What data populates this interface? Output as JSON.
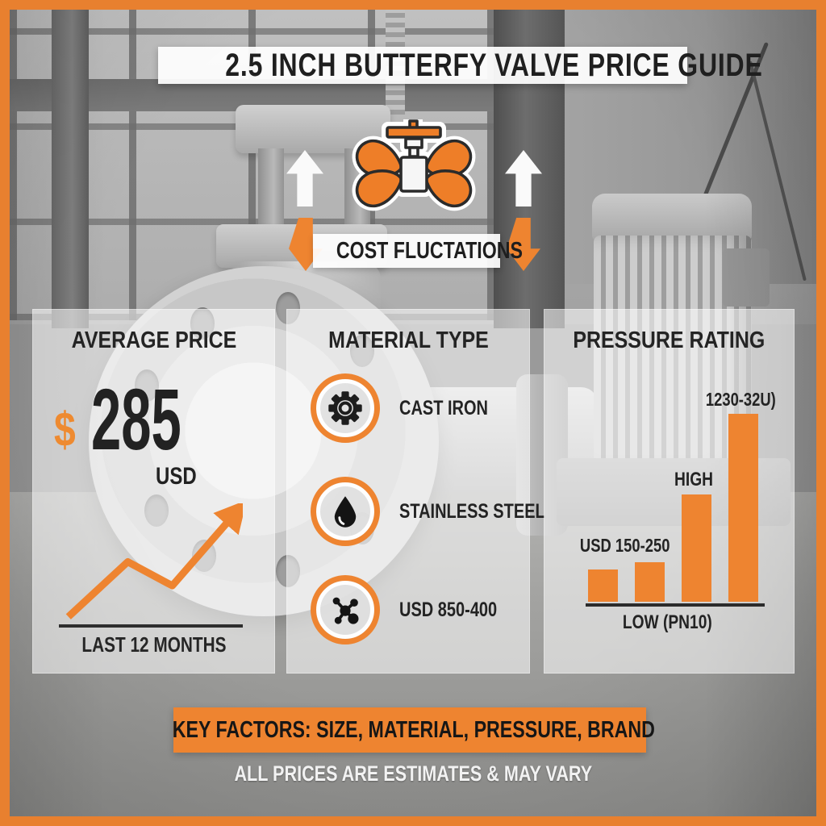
{
  "accent": "#EE8430",
  "title": "2.5 INCH BUTTERFY VALVE PRICE GUIDE",
  "hero": {
    "cost_banner": "COST FLUCTATIONS"
  },
  "panels": {
    "average_price": {
      "heading": "AVERAGE PRICE",
      "currency_symbol": "$",
      "amount": "285",
      "currency_code": "USD",
      "caption": "LAST 12 MONTHS"
    },
    "material_type": {
      "heading": "MATERIAL TYPE",
      "items": [
        {
          "icon": "gear-icon",
          "label": "CAST IRON"
        },
        {
          "icon": "droplet-icon",
          "label": "STAINLESS STEEL"
        },
        {
          "icon": "molecule-icon",
          "label": "USD 850-400"
        }
      ]
    },
    "pressure_rating": {
      "heading": "PRESSURE RATING"
    }
  },
  "footer": {
    "key_factors": "KEY FACTORS: SIZE, MATERIAL, PRESSURE, BRAND",
    "disclaimer": "ALL PRICES ARE ESTIMATES & MAY VARY"
  },
  "chart_data": [
    {
      "type": "line",
      "name": "price-trend",
      "title": "AVERAGE PRICE",
      "caption": "LAST 12 MONTHS",
      "points_pct": [
        [
          6,
          95
        ],
        [
          38,
          49
        ],
        [
          62,
          69
        ],
        [
          95,
          10
        ]
      ],
      "color": "#EE8430",
      "legend": "none",
      "grid": false,
      "annotation": "upward arrow at line end, baseline axis only, no tick labels"
    },
    {
      "type": "bar",
      "name": "pressure-rating-bars",
      "title": "PRESSURE RATING",
      "categories": [
        "",
        "",
        "HIGH",
        "1230-32U)"
      ],
      "values": [
        17,
        21,
        57,
        100
      ],
      "ylim": [
        0,
        100
      ],
      "grid": false,
      "color": "#EE8430",
      "labels": {
        "left": "USD 150-250",
        "high": "HIGH",
        "top": "1230-32U)",
        "axis": "LOW (PN10)"
      }
    }
  ]
}
